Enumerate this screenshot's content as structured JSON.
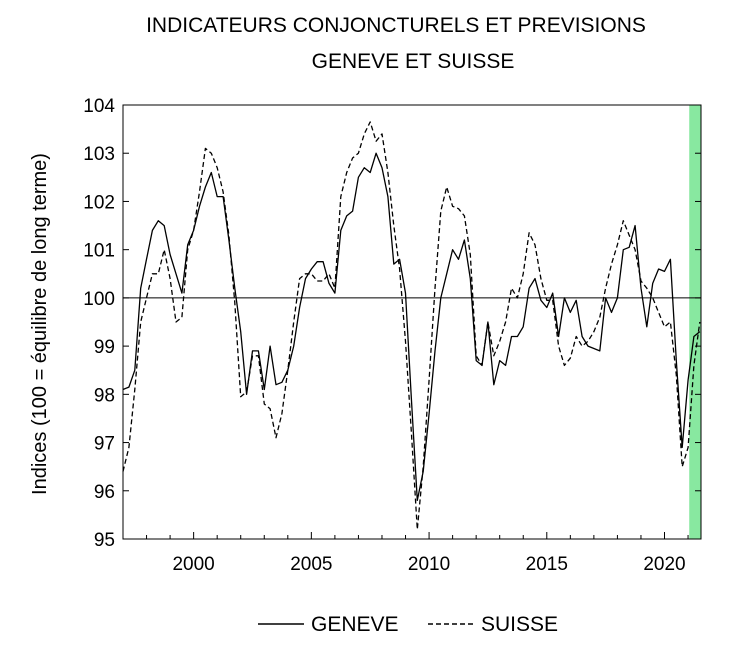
{
  "chart_data": {
    "type": "line",
    "title": "INDICATEURS CONJONCTURELS ET PREVISIONS",
    "subtitle": "GENEVE ET SUISSE",
    "ylabel": "Indices (100 = équilibre de long terme)",
    "xlabel": "",
    "ylim": [
      95,
      104
    ],
    "xlim": [
      1997.0,
      2021.55
    ],
    "yticks": [
      95,
      96,
      97,
      98,
      99,
      100,
      101,
      102,
      103,
      104
    ],
    "xticks": [
      2000,
      2005,
      2010,
      2015,
      2020
    ],
    "reference_line": 100,
    "forecast_band": {
      "from": 2021.05,
      "to": 2021.55,
      "color": "#88e8a0"
    },
    "legend_position": "bottom",
    "grid": false,
    "series": [
      {
        "name": "GENEVE",
        "style": "solid",
        "color": "#000000",
        "points": [
          [
            1997.0,
            98.1
          ],
          [
            1997.25,
            98.15
          ],
          [
            1997.5,
            98.5
          ],
          [
            1997.75,
            100.2
          ],
          [
            1998.0,
            100.8
          ],
          [
            1998.25,
            101.4
          ],
          [
            1998.5,
            101.6
          ],
          [
            1998.75,
            101.5
          ],
          [
            1999.0,
            100.9
          ],
          [
            1999.25,
            100.5
          ],
          [
            1999.5,
            100.1
          ],
          [
            1999.75,
            101.1
          ],
          [
            2000.0,
            101.4
          ],
          [
            2000.25,
            101.9
          ],
          [
            2000.5,
            102.3
          ],
          [
            2000.75,
            102.6
          ],
          [
            2001.0,
            102.1
          ],
          [
            2001.25,
            102.1
          ],
          [
            2001.5,
            101.2
          ],
          [
            2001.75,
            100.2
          ],
          [
            2002.0,
            99.3
          ],
          [
            2002.25,
            98.0
          ],
          [
            2002.5,
            98.9
          ],
          [
            2002.75,
            98.9
          ],
          [
            2003.0,
            98.1
          ],
          [
            2003.25,
            99.0
          ],
          [
            2003.5,
            98.2
          ],
          [
            2003.75,
            98.25
          ],
          [
            2004.0,
            98.5
          ],
          [
            2004.25,
            99.0
          ],
          [
            2004.5,
            99.8
          ],
          [
            2004.75,
            100.4
          ],
          [
            2005.0,
            100.6
          ],
          [
            2005.25,
            100.75
          ],
          [
            2005.5,
            100.75
          ],
          [
            2005.75,
            100.3
          ],
          [
            2006.0,
            100.1
          ],
          [
            2006.25,
            101.4
          ],
          [
            2006.5,
            101.7
          ],
          [
            2006.75,
            101.8
          ],
          [
            2007.0,
            102.5
          ],
          [
            2007.25,
            102.7
          ],
          [
            2007.5,
            102.6
          ],
          [
            2007.75,
            103.0
          ],
          [
            2008.0,
            102.7
          ],
          [
            2008.25,
            102.1
          ],
          [
            2008.5,
            100.7
          ],
          [
            2008.75,
            100.8
          ],
          [
            2009.0,
            100.1
          ],
          [
            2009.25,
            97.9
          ],
          [
            2009.5,
            95.8
          ],
          [
            2009.75,
            96.4
          ],
          [
            2010.0,
            97.6
          ],
          [
            2010.25,
            98.9
          ],
          [
            2010.5,
            100.0
          ],
          [
            2010.75,
            100.5
          ],
          [
            2011.0,
            101.0
          ],
          [
            2011.25,
            100.8
          ],
          [
            2011.5,
            101.2
          ],
          [
            2011.75,
            100.4
          ],
          [
            2012.0,
            98.7
          ],
          [
            2012.25,
            98.6
          ],
          [
            2012.5,
            99.5
          ],
          [
            2012.75,
            98.2
          ],
          [
            2013.0,
            98.7
          ],
          [
            2013.25,
            98.6
          ],
          [
            2013.5,
            99.2
          ],
          [
            2013.75,
            99.2
          ],
          [
            2014.0,
            99.4
          ],
          [
            2014.25,
            100.2
          ],
          [
            2014.5,
            100.4
          ],
          [
            2014.75,
            99.95
          ],
          [
            2015.0,
            99.8
          ],
          [
            2015.25,
            100.1
          ],
          [
            2015.5,
            99.2
          ],
          [
            2015.75,
            100.0
          ],
          [
            2016.0,
            99.7
          ],
          [
            2016.25,
            99.95
          ],
          [
            2016.5,
            99.2
          ],
          [
            2016.75,
            99.0
          ],
          [
            2017.0,
            98.95
          ],
          [
            2017.25,
            98.9
          ],
          [
            2017.5,
            100.0
          ],
          [
            2017.75,
            99.7
          ],
          [
            2018.0,
            100.0
          ],
          [
            2018.25,
            101.0
          ],
          [
            2018.5,
            101.05
          ],
          [
            2018.75,
            101.5
          ],
          [
            2019.0,
            100.2
          ],
          [
            2019.25,
            99.4
          ],
          [
            2019.5,
            100.3
          ],
          [
            2019.75,
            100.6
          ],
          [
            2020.0,
            100.55
          ],
          [
            2020.25,
            100.8
          ],
          [
            2020.5,
            98.7
          ],
          [
            2020.75,
            96.9
          ],
          [
            2021.0,
            98.3
          ],
          [
            2021.25,
            99.2
          ],
          [
            2021.5,
            99.3
          ]
        ]
      },
      {
        "name": "SUISSE",
        "style": "dashed",
        "color": "#000000",
        "points": [
          [
            1997.0,
            96.4
          ],
          [
            1997.25,
            96.9
          ],
          [
            1997.5,
            98.1
          ],
          [
            1997.75,
            99.5
          ],
          [
            1998.0,
            100.0
          ],
          [
            1998.25,
            100.5
          ],
          [
            1998.5,
            100.5
          ],
          [
            1998.75,
            101.0
          ],
          [
            1999.0,
            100.4
          ],
          [
            1999.25,
            99.5
          ],
          [
            1999.5,
            99.6
          ],
          [
            1999.75,
            101.0
          ],
          [
            2000.0,
            101.4
          ],
          [
            2000.25,
            102.2
          ],
          [
            2000.5,
            103.1
          ],
          [
            2000.75,
            103.0
          ],
          [
            2001.0,
            102.7
          ],
          [
            2001.25,
            102.2
          ],
          [
            2001.5,
            101.3
          ],
          [
            2001.75,
            99.9
          ],
          [
            2002.0,
            97.95
          ],
          [
            2002.25,
            98.05
          ],
          [
            2002.5,
            98.8
          ],
          [
            2002.75,
            98.8
          ],
          [
            2003.0,
            97.8
          ],
          [
            2003.25,
            97.7
          ],
          [
            2003.5,
            97.1
          ],
          [
            2003.75,
            97.6
          ],
          [
            2004.0,
            98.5
          ],
          [
            2004.25,
            99.5
          ],
          [
            2004.5,
            100.4
          ],
          [
            2004.75,
            100.5
          ],
          [
            2005.0,
            100.5
          ],
          [
            2005.25,
            100.35
          ],
          [
            2005.5,
            100.35
          ],
          [
            2005.75,
            100.5
          ],
          [
            2006.0,
            100.2
          ],
          [
            2006.25,
            102.1
          ],
          [
            2006.5,
            102.6
          ],
          [
            2006.75,
            102.9
          ],
          [
            2007.0,
            103.0
          ],
          [
            2007.25,
            103.4
          ],
          [
            2007.5,
            103.65
          ],
          [
            2007.75,
            103.25
          ],
          [
            2008.0,
            103.4
          ],
          [
            2008.25,
            102.6
          ],
          [
            2008.5,
            101.5
          ],
          [
            2008.75,
            100.6
          ],
          [
            2009.0,
            99.1
          ],
          [
            2009.25,
            97.2
          ],
          [
            2009.5,
            95.2
          ],
          [
            2009.75,
            96.5
          ],
          [
            2010.0,
            98.3
          ],
          [
            2010.25,
            100.2
          ],
          [
            2010.5,
            101.8
          ],
          [
            2010.75,
            102.3
          ],
          [
            2011.0,
            101.9
          ],
          [
            2011.25,
            101.85
          ],
          [
            2011.5,
            101.7
          ],
          [
            2011.75,
            100.9
          ],
          [
            2012.0,
            98.8
          ],
          [
            2012.25,
            98.6
          ],
          [
            2012.5,
            99.5
          ],
          [
            2012.75,
            98.8
          ],
          [
            2013.0,
            99.1
          ],
          [
            2013.25,
            99.5
          ],
          [
            2013.5,
            100.2
          ],
          [
            2013.75,
            100.0
          ],
          [
            2014.0,
            100.5
          ],
          [
            2014.25,
            101.35
          ],
          [
            2014.5,
            101.1
          ],
          [
            2014.75,
            100.4
          ],
          [
            2015.0,
            99.95
          ],
          [
            2015.25,
            99.95
          ],
          [
            2015.5,
            99.0
          ],
          [
            2015.75,
            98.6
          ],
          [
            2016.0,
            98.75
          ],
          [
            2016.25,
            99.2
          ],
          [
            2016.5,
            99.0
          ],
          [
            2016.75,
            99.1
          ],
          [
            2017.0,
            99.3
          ],
          [
            2017.25,
            99.6
          ],
          [
            2017.5,
            100.2
          ],
          [
            2017.75,
            100.7
          ],
          [
            2018.0,
            101.1
          ],
          [
            2018.25,
            101.6
          ],
          [
            2018.5,
            101.3
          ],
          [
            2018.75,
            101.0
          ],
          [
            2019.0,
            100.35
          ],
          [
            2019.25,
            100.2
          ],
          [
            2019.5,
            100.0
          ],
          [
            2019.75,
            99.7
          ],
          [
            2020.0,
            99.4
          ],
          [
            2020.25,
            99.5
          ],
          [
            2020.5,
            98.4
          ],
          [
            2020.75,
            96.5
          ],
          [
            2021.0,
            96.9
          ],
          [
            2021.25,
            98.6
          ],
          [
            2021.5,
            99.5
          ]
        ]
      }
    ]
  }
}
